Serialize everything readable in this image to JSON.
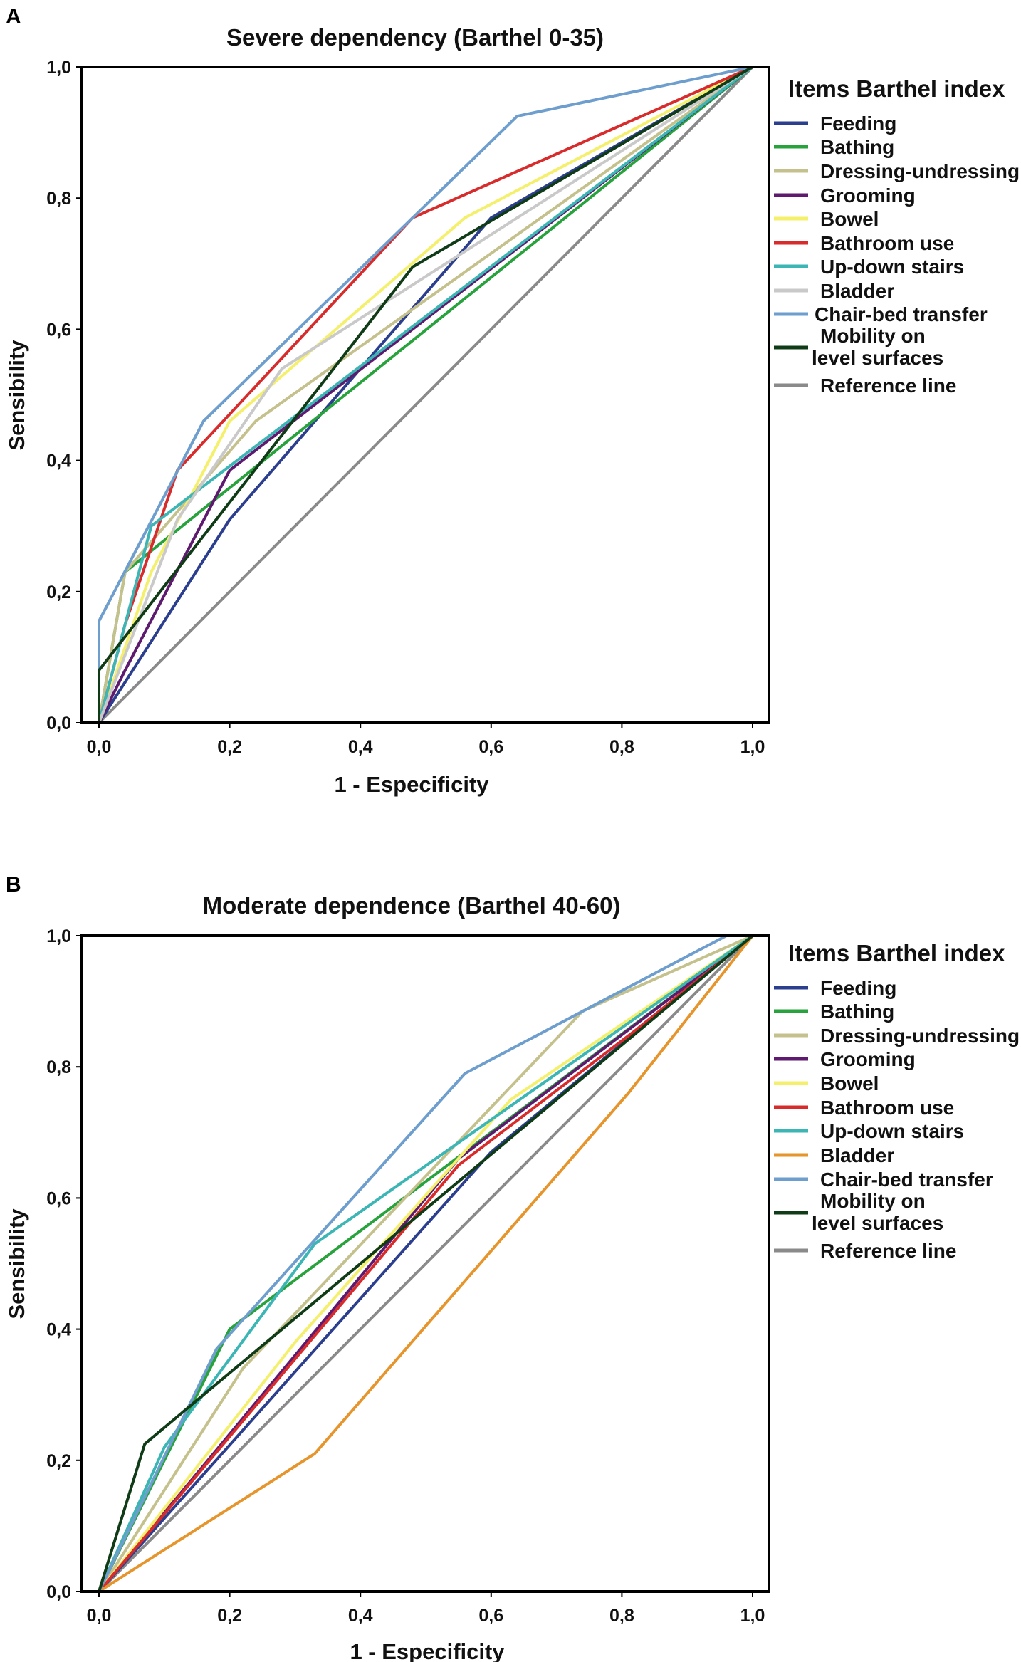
{
  "chart_data": [
    {
      "type": "line",
      "panel_label": "A",
      "title": "Severe dependency (Barthel 0-35)",
      "xlabel": "1 - Especificity",
      "ylabel": "Sensibility",
      "xlim": [
        0,
        1
      ],
      "ylim": [
        0,
        1
      ],
      "ticks": [
        "0,0",
        "0,2",
        "0,4",
        "0,6",
        "0,8",
        "1,0"
      ],
      "tick_values": [
        0,
        0.2,
        0.4,
        0.6,
        0.8,
        1.0
      ],
      "legend_title": "Items Barthel index",
      "legend_position": "right",
      "series": [
        {
          "name": "Feeding",
          "color": "#2c3f8f",
          "points": [
            [
              0,
              0
            ],
            [
              0.2,
              0.31
            ],
            [
              0.4,
              0.54
            ],
            [
              0.6,
              0.77
            ],
            [
              1,
              1
            ]
          ]
        },
        {
          "name": "Bathing",
          "color": "#27a23c",
          "points": [
            [
              0,
              0
            ],
            [
              0.04,
              0.23
            ],
            [
              1,
              1
            ]
          ]
        },
        {
          "name": "Dressing-undressing",
          "color": "#c5c18c",
          "points": [
            [
              0,
              0
            ],
            [
              0.04,
              0.23
            ],
            [
              0.24,
              0.46
            ],
            [
              1,
              1
            ]
          ]
        },
        {
          "name": "Grooming",
          "color": "#5e1a6e",
          "points": [
            [
              0,
              0
            ],
            [
              0.04,
              0.08
            ],
            [
              0.2,
              0.385
            ],
            [
              1,
              1
            ]
          ]
        },
        {
          "name": "Bowel",
          "color": "#f5f06c",
          "points": [
            [
              0,
              0
            ],
            [
              0.08,
              0.23
            ],
            [
              0.2,
              0.46
            ],
            [
              0.56,
              0.77
            ],
            [
              1,
              1
            ]
          ]
        },
        {
          "name": "Bathroom use",
          "color": "#d82c2c",
          "points": [
            [
              0,
              0
            ],
            [
              0.04,
              0.15
            ],
            [
              0.12,
              0.385
            ],
            [
              0.48,
              0.77
            ],
            [
              1,
              1
            ]
          ]
        },
        {
          "name": "Up-down stairs",
          "color": "#3cb5b5",
          "points": [
            [
              0,
              0
            ],
            [
              0.08,
              0.3
            ],
            [
              1,
              1
            ]
          ]
        },
        {
          "name": "Bladder",
          "color": "#c9c9c9",
          "points": [
            [
              0,
              0
            ],
            [
              0.12,
              0.31
            ],
            [
              0.28,
              0.54
            ],
            [
              1,
              1
            ]
          ]
        },
        {
          "name": "Chair-bed transfer",
          "color": "#6d9ecd",
          "points": [
            [
              0,
              0
            ],
            [
              0,
              0.155
            ],
            [
              0.16,
              0.46
            ],
            [
              0.48,
              0.77
            ],
            [
              0.64,
              0.925
            ],
            [
              1,
              1
            ]
          ]
        },
        {
          "name": "Mobility on level surfaces",
          "color": "#0f3b16",
          "points": [
            [
              0,
              0
            ],
            [
              0,
              0.08
            ],
            [
              0.48,
              0.695
            ],
            [
              1,
              1
            ]
          ]
        },
        {
          "name": "Reference line",
          "color": "#8a8a8a",
          "points": [
            [
              0,
              0
            ],
            [
              1,
              1
            ]
          ]
        }
      ]
    },
    {
      "type": "line",
      "panel_label": "B",
      "title": "Moderate dependence (Barthel 40-60)",
      "xlabel": "1 - Especificity",
      "ylabel": "Sensibility",
      "xlim": [
        0,
        1
      ],
      "ylim": [
        0,
        1
      ],
      "ticks": [
        "0,0",
        "0,2",
        "0,4",
        "0,6",
        "0,8",
        "1,0"
      ],
      "tick_values": [
        0,
        0.2,
        0.4,
        0.6,
        0.8,
        1.0
      ],
      "legend_title": "Items Barthel index",
      "legend_position": "right",
      "series": [
        {
          "name": "Feeding",
          "color": "#2c3f8f",
          "points": [
            [
              0,
              0
            ],
            [
              0.6,
              0.67
            ],
            [
              1,
              1
            ]
          ]
        },
        {
          "name": "Bathing",
          "color": "#27a23c",
          "points": [
            [
              0,
              0
            ],
            [
              0.2,
              0.4
            ],
            [
              0.56,
              0.67
            ],
            [
              1,
              1
            ]
          ]
        },
        {
          "name": "Dressing-undressing",
          "color": "#c5c18c",
          "points": [
            [
              0,
              0
            ],
            [
              0.22,
              0.34
            ],
            [
              0.74,
              0.885
            ],
            [
              1,
              1
            ]
          ]
        },
        {
          "name": "Grooming",
          "color": "#5e1a6e",
          "points": [
            [
              0,
              0
            ],
            [
              0.55,
              0.66
            ],
            [
              1,
              1
            ]
          ]
        },
        {
          "name": "Bowel",
          "color": "#f5f06c",
          "points": [
            [
              0,
              0
            ],
            [
              0.3,
              0.38
            ],
            [
              0.63,
              0.75
            ],
            [
              1,
              1
            ]
          ]
        },
        {
          "name": "Bathroom use",
          "color": "#d82c2c",
          "points": [
            [
              0,
              0
            ],
            [
              0.55,
              0.65
            ],
            [
              0.82,
              0.855
            ],
            [
              1,
              1
            ]
          ]
        },
        {
          "name": "Up-down stairs",
          "color": "#3cb5b5",
          "points": [
            [
              0,
              0
            ],
            [
              0.1,
              0.22
            ],
            [
              0.33,
              0.53
            ],
            [
              1,
              1
            ]
          ]
        },
        {
          "name": "Bladder",
          "color": "#e6952c",
          "points": [
            [
              0,
              0
            ],
            [
              0.33,
              0.21
            ],
            [
              0.81,
              0.76
            ],
            [
              1,
              1
            ]
          ]
        },
        {
          "name": "Chair-bed transfer",
          "color": "#6d9ecd",
          "points": [
            [
              0,
              0
            ],
            [
              0.18,
              0.37
            ],
            [
              0.56,
              0.79
            ],
            [
              0.75,
              0.89
            ],
            [
              0.96,
              1
            ]
          ]
        },
        {
          "name": "Mobility on level surfaces",
          "color": "#0f3b16",
          "points": [
            [
              0,
              0
            ],
            [
              0.07,
              0.225
            ],
            [
              1,
              1
            ]
          ]
        },
        {
          "name": "Reference line",
          "color": "#8a8a8a",
          "points": [
            [
              0,
              0
            ],
            [
              1,
              1
            ]
          ]
        }
      ]
    }
  ]
}
